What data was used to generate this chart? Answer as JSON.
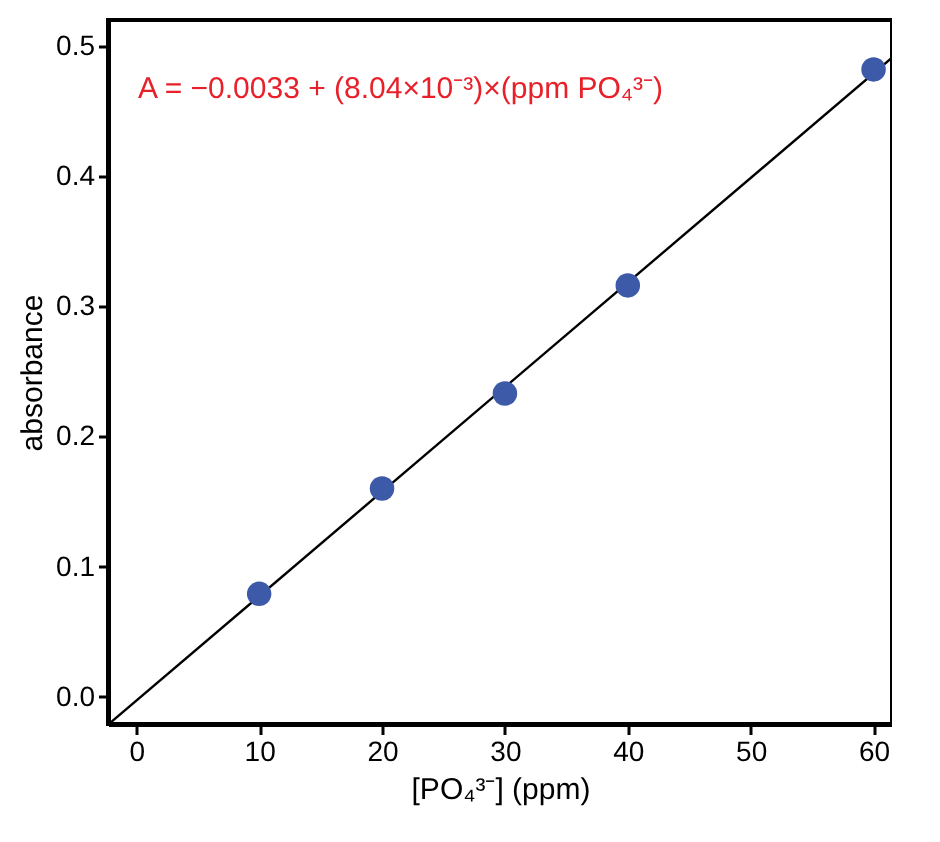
{
  "chart_data": {
    "type": "scatter",
    "xlabel": "[PO₄³⁻] (ppm)",
    "ylabel": "absorbance",
    "annotations": [
      "A = −0.0033 + (8.04×10⁻³)×(ppm PO₄³⁻)"
    ],
    "series": [
      {
        "color": "#3d5aa8",
        "x": [
          10,
          20,
          30,
          40,
          60
        ],
        "values": [
          0.079,
          0.16,
          0.233,
          0.316,
          0.482
        ],
        "marker": "circle"
      },
      {
        "type": "line",
        "color": "#000000",
        "x": [
          -2.1,
          61.5
        ],
        "values": [
          -0.02,
          0.491
        ],
        "line_style": "solid"
      }
    ],
    "xlim": [
      -2.3,
      61.5
    ],
    "ylim": [
      -0.021,
      0.52
    ],
    "xticks": [
      0,
      10,
      20,
      30,
      40,
      50,
      60
    ],
    "yticks": [
      {
        "value": 0,
        "label": "0.0"
      },
      0.1,
      0.2,
      0.3,
      0.4,
      0.5
    ],
    "grid": false
  }
}
